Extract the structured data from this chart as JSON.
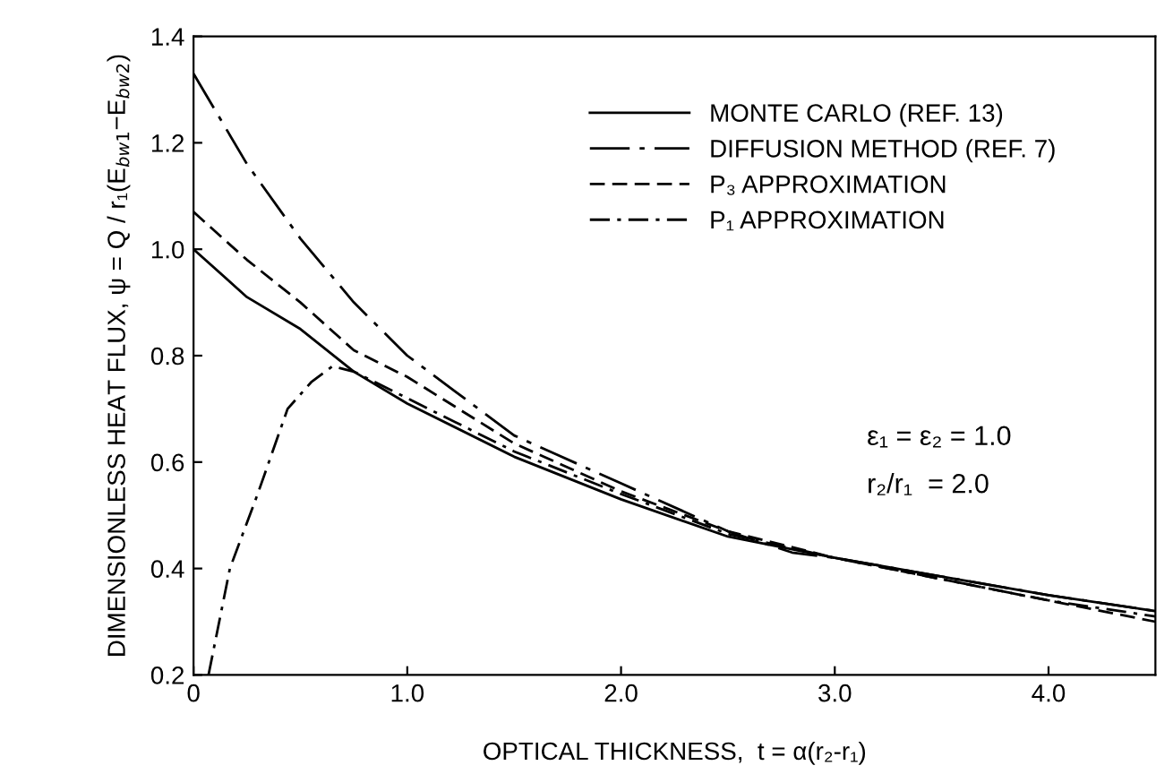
{
  "chart_data": {
    "type": "line",
    "xlabel": "OPTICAL THICKNESS,  t = α(r₂-r₁)",
    "ylabel": "DIMENSIONLESS HEAT FLUX, ψ = Q / r₁(E$_{bw1}$−E$_{bw2}$)",
    "xlim": [
      0,
      4.5
    ],
    "ylim": [
      0.2,
      1.4
    ],
    "xticks": [
      0,
      {
        "value": 1,
        "label": "1.0"
      },
      {
        "value": 2,
        "label": "2.0"
      },
      {
        "value": 3,
        "label": "3.0"
      },
      {
        "value": 4,
        "label": "4.0"
      }
    ],
    "yticks": [
      {
        "value": 0.2,
        "label": "0.2"
      },
      {
        "value": 0.4,
        "label": "0.4"
      },
      {
        "value": 0.6,
        "label": "0.6"
      },
      {
        "value": 0.8,
        "label": "0.8"
      },
      {
        "value": 1.0,
        "label": "1.0"
      },
      {
        "value": 1.2,
        "label": "1.2"
      },
      {
        "value": 1.4,
        "label": "1.4"
      }
    ],
    "grid": false,
    "legend": "top right",
    "marker": "none",
    "series": [
      {
        "name": "MONTE CARLO (REF. 13)",
        "color": "#000000",
        "line_style": "solid",
        "x": [
          0,
          0.25,
          0.5,
          0.75,
          1.0,
          1.5,
          2.0,
          2.5,
          3.0,
          3.5,
          4.0,
          4.5
        ],
        "values": [
          1.0,
          0.91,
          0.85,
          0.77,
          0.71,
          0.61,
          0.53,
          0.46,
          0.42,
          0.385,
          0.35,
          0.32
        ]
      },
      {
        "name": "DIFFUSION METHOD (REF. 7)",
        "color": "#000000",
        "line_style": "longdashdot",
        "x": [
          0,
          0.25,
          0.5,
          0.75,
          1.0,
          1.5,
          2.0,
          2.5,
          2.8,
          3.0,
          3.5,
          4.0,
          4.5
        ],
        "values": [
          1.33,
          1.16,
          1.02,
          0.9,
          0.8,
          0.65,
          0.56,
          0.47,
          0.43,
          0.42,
          0.385,
          0.35,
          0.32
        ]
      },
      {
        "name": "P₃ APPROXIMATION",
        "color": "#000000",
        "line_style": "dashed",
        "x": [
          0,
          0.25,
          0.5,
          0.75,
          1.0,
          1.5,
          2.0,
          2.5,
          3.0,
          3.5,
          4.0,
          4.5
        ],
        "values": [
          1.07,
          0.98,
          0.9,
          0.81,
          0.76,
          0.635,
          0.545,
          0.47,
          0.42,
          0.38,
          0.34,
          0.3
        ]
      },
      {
        "name": "P₁ APPROXIMATION",
        "color": "#000000",
        "line_style": "dashdot",
        "x": [
          0.07,
          0.17,
          0.3,
          0.44,
          0.55,
          0.65,
          0.75,
          1.0,
          1.5,
          2.0,
          2.5,
          3.0,
          3.5,
          4.0,
          4.5
        ],
        "values": [
          0.2,
          0.4,
          0.54,
          0.7,
          0.75,
          0.78,
          0.77,
          0.72,
          0.62,
          0.54,
          0.465,
          0.42,
          0.38,
          0.34,
          0.31
        ]
      }
    ],
    "annotations": [
      "ε₁ = ε₂ = 1.0",
      "r₂/r₁  = 2.0"
    ]
  }
}
